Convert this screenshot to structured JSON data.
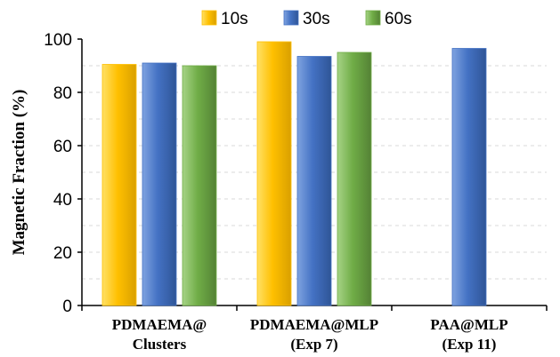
{
  "chart_data": {
    "type": "bar",
    "title": "",
    "xlabel": "",
    "ylabel": "Magnetic Fraction (%)",
    "ylim": [
      0,
      100
    ],
    "yticks": [
      0,
      20,
      40,
      60,
      80,
      100
    ],
    "grid": true,
    "legend_position": "top-center",
    "categories": [
      [
        "PDMAEMA@",
        "Clusters"
      ],
      [
        "PDMAEMA@MLP",
        "(Exp 7)"
      ],
      [
        "PAA@MLP",
        "(Exp 11)"
      ]
    ],
    "series": [
      {
        "name": "10s",
        "color": "#FFC000",
        "values": [
          90.5,
          99,
          null
        ]
      },
      {
        "name": "30s",
        "color": "#4472C4",
        "values": [
          91,
          93.5,
          96.5
        ]
      },
      {
        "name": "60s",
        "color": "#70AD47",
        "values": [
          90,
          95,
          null
        ]
      }
    ]
  }
}
